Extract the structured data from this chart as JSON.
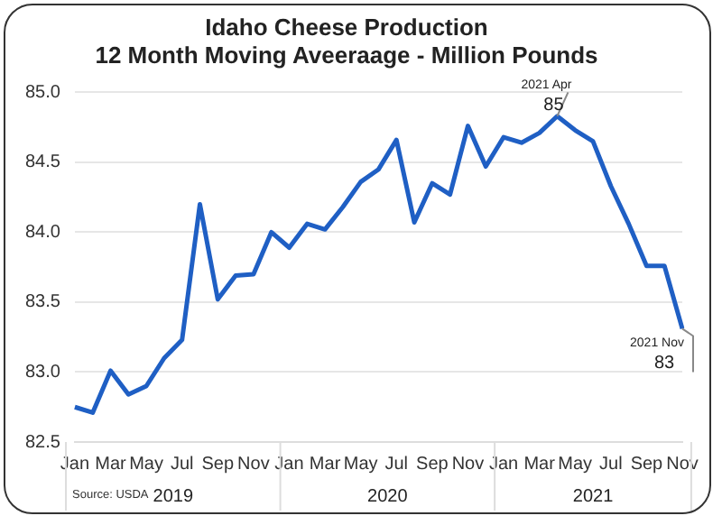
{
  "chart_data": {
    "type": "line",
    "title": [
      "Idaho Cheese Production",
      "12 Month Moving Aveeraage - Million Pounds"
    ],
    "categories": [
      "Jan",
      null,
      "Mar",
      null,
      "May",
      null,
      "Jul",
      null,
      "Sep",
      null,
      "Nov",
      null,
      "Jan",
      null,
      "Mar",
      null,
      "May",
      null,
      "Jul",
      null,
      "Sep",
      null,
      "Nov",
      null,
      "Jan",
      null,
      "Mar",
      null,
      "May",
      null,
      "Jul",
      null,
      "Sep",
      null,
      "Nov"
    ],
    "series": [
      {
        "color": "#1f5fc4",
        "values": [
          82.75,
          82.71,
          83.01,
          82.84,
          82.9,
          83.1,
          83.23,
          84.2,
          83.52,
          83.69,
          83.7,
          84.0,
          83.89,
          84.06,
          84.02,
          84.18,
          84.36,
          84.45,
          84.66,
          84.07,
          84.35,
          84.27,
          84.76,
          84.47,
          84.68,
          84.64,
          84.71,
          84.83,
          84.73,
          84.65,
          84.33,
          84.06,
          83.76,
          83.76,
          83.31
        ]
      }
    ],
    "ylim": [
      82.5,
      85.0
    ],
    "yticks": [
      {
        "value": 82.5,
        "label": "82.5"
      },
      {
        "value": 83,
        "label": "83.0"
      },
      {
        "value": 83.5,
        "label": "83.5"
      },
      {
        "value": 84,
        "label": "84.0"
      },
      {
        "value": 84.5,
        "label": "84.5"
      },
      {
        "value": 85,
        "label": "85.0"
      }
    ],
    "grid": "y",
    "legend": false,
    "marker": "none",
    "line_style": "solid",
    "annotations": [
      "2021 Apr\n85",
      "2021 Nov\n83",
      "2019",
      "2020",
      "2021",
      "Source: USDA"
    ]
  }
}
